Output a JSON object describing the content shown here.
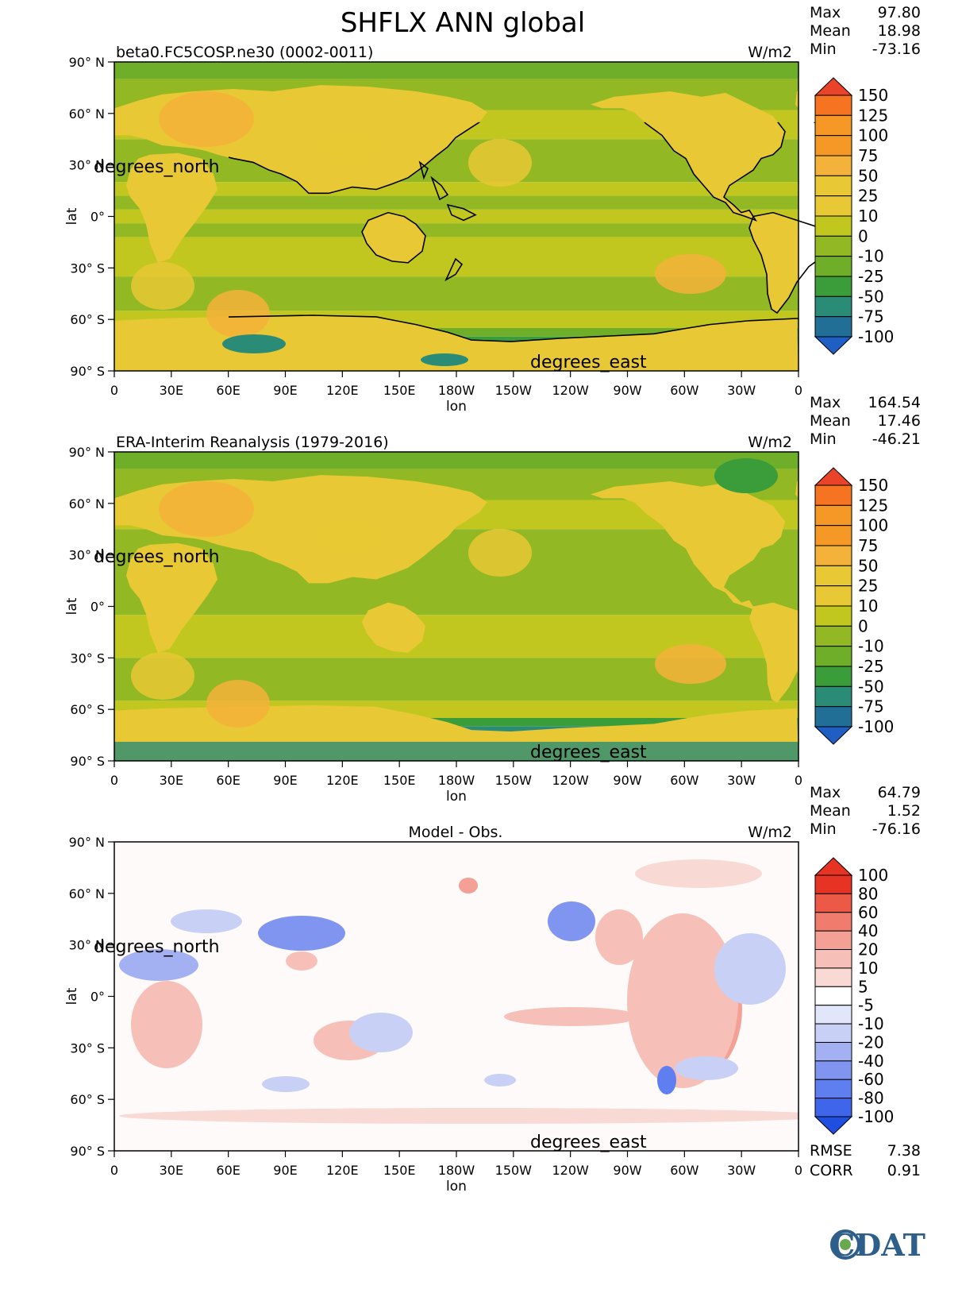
{
  "title": "SHFLX ANN global",
  "colors": {
    "neg3": "#1f5fc4",
    "neg2": "#216f97",
    "neg1": "#2a8c76",
    "negA": "#3b9d3a",
    "negB": "#4fa233",
    "neg0": "#6fae28",
    "pos0": "#92b823",
    "posA": "#c2c71f",
    "posB": "#e8c834",
    "posC": "#f4b23a",
    "posD": "#f59826",
    "posE": "#f57321",
    "pos4": "#e9442a",
    "land": "#e0c13c",
    "diff_neg": [
      "#1e4fe0",
      "#3f65ea",
      "#5f7ff0",
      "#8095f0",
      "#a3b1f2",
      "#c8d0f5",
      "#e2e6fa"
    ],
    "diff_pos": [
      "#fdf4f2",
      "#f9d9d4",
      "#f6c0b8",
      "#f4a095",
      "#f07c6e",
      "#ec5a47",
      "#e63324"
    ],
    "cdat_blue": "#2d5f8a",
    "cdat_green": "#6aa84f"
  },
  "panels": [
    {
      "subtitle": "beta0.FC5COSP.ne30 (0002-0011)",
      "units": "W/m2",
      "stats": [
        {
          "label": "Max",
          "value": "97.80"
        },
        {
          "label": "Mean",
          "value": "18.98"
        },
        {
          "label": "Min",
          "value": "-73.16"
        }
      ],
      "colorbar": [
        "150",
        "125",
        "100",
        "75",
        "50",
        "25",
        "10",
        "0",
        "-10",
        "-25",
        "-50",
        "-75",
        "-100"
      ]
    },
    {
      "subtitle": "ERA-Interim Reanalysis (1979-2016)",
      "units": "W/m2",
      "stats": [
        {
          "label": "Max",
          "value": "164.54"
        },
        {
          "label": "Mean",
          "value": "17.46"
        },
        {
          "label": "Min",
          "value": "-46.21"
        }
      ],
      "colorbar": [
        "150",
        "125",
        "100",
        "75",
        "50",
        "25",
        "10",
        "0",
        "-10",
        "-25",
        "-50",
        "-75",
        "-100"
      ]
    },
    {
      "subtitle": "Model - Obs.",
      "units": "W/m2",
      "stats": [
        {
          "label": "Max",
          "value": "64.79"
        },
        {
          "label": "Mean",
          "value": "1.52"
        },
        {
          "label": "Min",
          "value": "-76.16"
        }
      ],
      "colorbar": [
        "100",
        "80",
        "60",
        "40",
        "20",
        "10",
        "5",
        "-5",
        "-10",
        "-20",
        "-40",
        "-60",
        "-80",
        "-100"
      ],
      "extra_stats": [
        {
          "label": "RMSE",
          "value": "7.38"
        },
        {
          "label": "CORR",
          "value": "0.91"
        }
      ]
    }
  ],
  "chart_data": {
    "type": "heatmap",
    "title": "SHFLX ANN global",
    "xlabel": "lon",
    "ylabel": "lat",
    "xlim": [
      0,
      360
    ],
    "ylim": [
      -90,
      90
    ],
    "x_ticks": [
      "0",
      "30E",
      "60E",
      "90E",
      "120E",
      "150E",
      "180W",
      "150W",
      "120W",
      "90W",
      "60W",
      "30W",
      "0"
    ],
    "y_ticks": [
      "90° N",
      "60° N",
      "30° N",
      "0°",
      "30° S",
      "60° S",
      "90° S"
    ],
    "x_units_label": "degrees_east",
    "y_units_label": "degrees_north",
    "series": [
      {
        "name": "beta0.FC5COSP.ne30 (0002-0011)",
        "max": 97.8,
        "mean": 18.98,
        "min": -73.16
      },
      {
        "name": "ERA-Interim Reanalysis (1979-2016)",
        "max": 164.54,
        "mean": 17.46,
        "min": -46.21
      },
      {
        "name": "Model - Obs.",
        "max": 64.79,
        "mean": 1.52,
        "min": -76.16,
        "rmse": 7.38,
        "corr": 0.91
      }
    ]
  },
  "logo": {
    "text": "CDAT"
  }
}
